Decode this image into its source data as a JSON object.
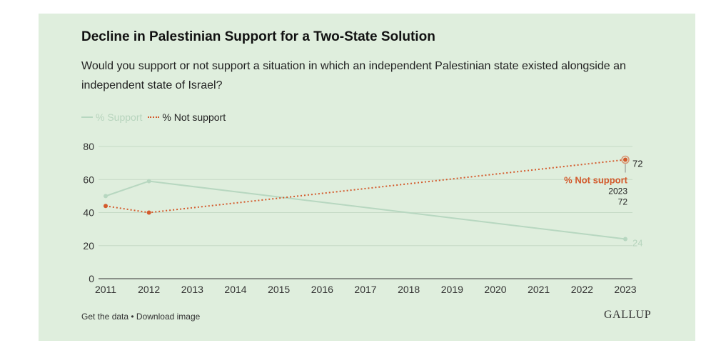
{
  "header": {
    "title": "Decline in Palestinian Support for a Two-State Solution",
    "subtitle": "Would you support or not support a situation in which an independent Palestinian state existed alongside an independent state of Israel?"
  },
  "legend": {
    "support": "% Support",
    "not_support": "% Not support"
  },
  "footer": {
    "get_data": "Get the data",
    "separator": " • ",
    "download": "Download image",
    "logo": "GALLUP"
  },
  "colors": {
    "support": "#b7d7c0",
    "not_support": "#d35a2c",
    "grid": "#c5d9c5",
    "axis": "#333333",
    "background": "#dfeedd"
  },
  "chart_data": {
    "type": "line",
    "title": "Decline in Palestinian Support for a Two-State Solution",
    "xlabel": "",
    "ylabel": "",
    "x": [
      2011,
      2012,
      2013,
      2014,
      2015,
      2016,
      2017,
      2018,
      2019,
      2020,
      2021,
      2022,
      2023
    ],
    "xlim": [
      2011,
      2023
    ],
    "ylim": [
      0,
      80
    ],
    "yticks": [
      0,
      20,
      40,
      60,
      80
    ],
    "series": [
      {
        "name": "% Support",
        "points": [
          [
            2011,
            50
          ],
          [
            2012,
            59
          ],
          [
            2023,
            24
          ]
        ],
        "end_label": "24"
      },
      {
        "name": "% Not support",
        "points": [
          [
            2011,
            44
          ],
          [
            2012,
            40
          ],
          [
            2023,
            72
          ]
        ],
        "end_label": "72"
      }
    ],
    "tooltip": {
      "series": "% Not support",
      "year": "2023",
      "value": "72"
    }
  }
}
